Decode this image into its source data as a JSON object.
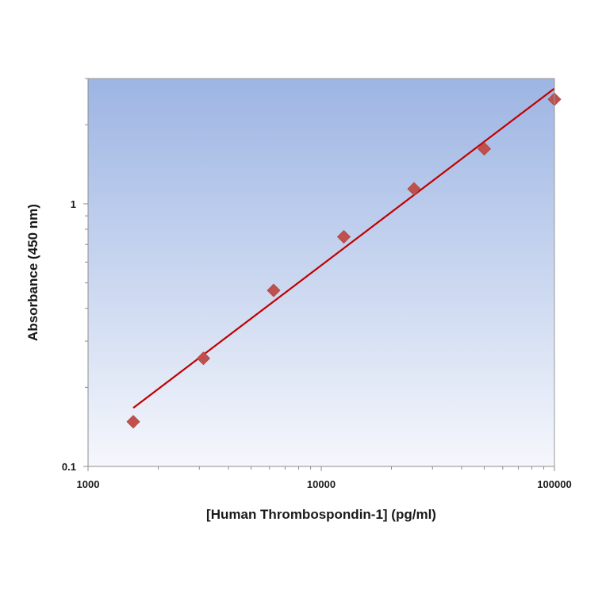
{
  "chart_data": {
    "type": "scatter",
    "title": "",
    "xlabel": "[Human Thrombospondin-1] (pg/ml)",
    "ylabel": "Absorbance (450 nm)",
    "x_scale": "log",
    "y_scale": "log",
    "xlim": [
      1000,
      100000
    ],
    "ylim": [
      0.1,
      3
    ],
    "x_ticks": [
      {
        "value": 1000,
        "label": "1000"
      },
      {
        "value": 10000,
        "label": "10000"
      },
      {
        "value": 100000,
        "label": "100000"
      }
    ],
    "y_ticks": [
      {
        "value": 0.1,
        "label": "0.1"
      },
      {
        "value": 1,
        "label": "1"
      }
    ],
    "grid": false,
    "legend": "none",
    "series": [
      {
        "marker": "diamond",
        "color": "#c0504d",
        "points": [
          {
            "x": 1563,
            "y": 0.148
          },
          {
            "x": 3125,
            "y": 0.258
          },
          {
            "x": 6250,
            "y": 0.468
          },
          {
            "x": 12500,
            "y": 0.749
          },
          {
            "x": 25000,
            "y": 1.14
          },
          {
            "x": 50000,
            "y": 1.62
          },
          {
            "x": 100000,
            "y": 2.5
          }
        ]
      }
    ],
    "fit_line": {
      "color": "#c00000",
      "points": [
        {
          "x": 1563,
          "y": 0.167
        },
        {
          "x": 100000,
          "y": 2.75
        }
      ]
    },
    "plot_background": {
      "top": "#9db5e3",
      "bottom": "#f5f7fc"
    }
  }
}
